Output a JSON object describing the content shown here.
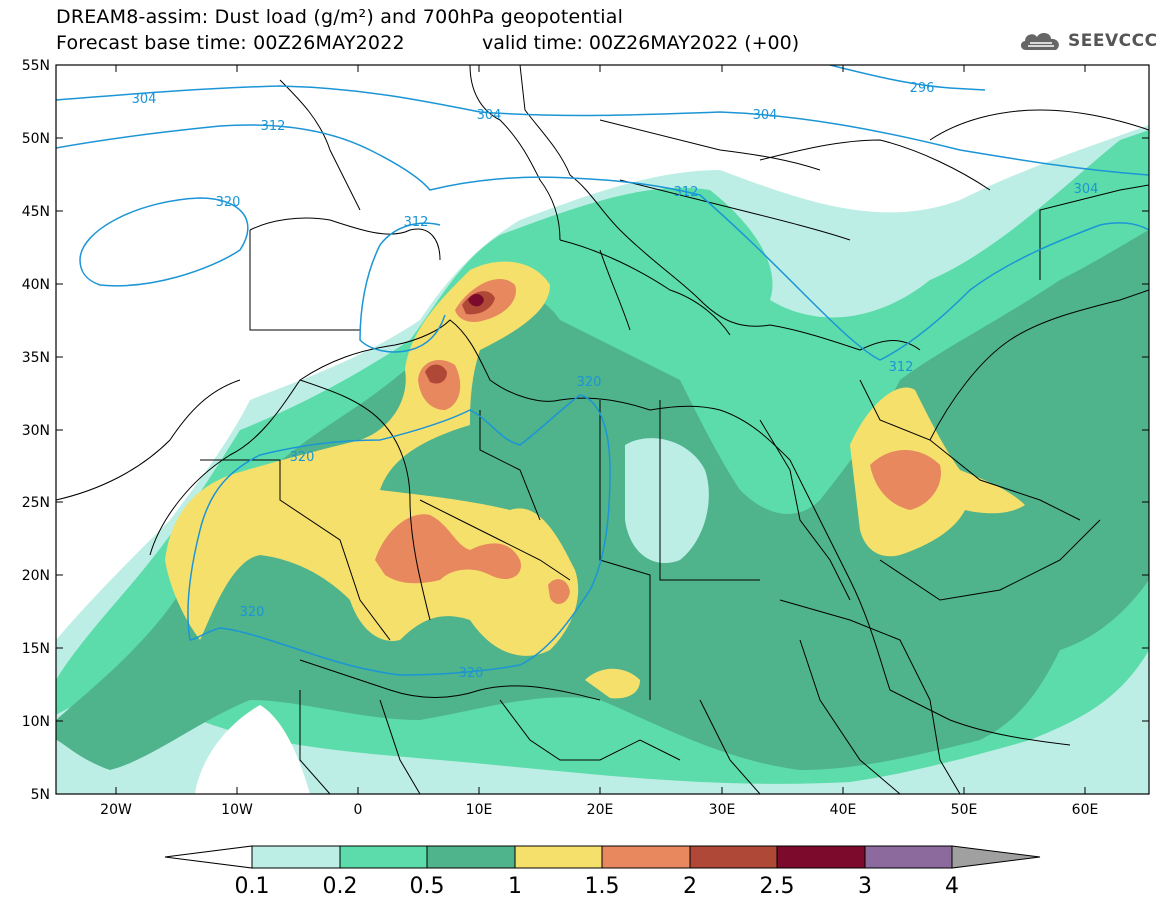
{
  "header": {
    "title_line1": "DREAM8-assim: Dust load (g/m²) and 700hPa geopotential",
    "title_line2": "Forecast base time: 00Z26MAY2022",
    "valid": "valid time: 00Z26MAY2022 (+00)"
  },
  "logo": {
    "text": "SEEVCCC",
    "icon": "cloud-icon"
  },
  "map": {
    "lat_labels": [
      "55N",
      "50N",
      "45N",
      "40N",
      "35N",
      "30N",
      "25N",
      "20N",
      "15N",
      "10N",
      "5N"
    ],
    "lon_labels": [
      "20W",
      "10W",
      "0",
      "10E",
      "20E",
      "30E",
      "40E",
      "50E",
      "60E"
    ],
    "contour_labels": [
      "304",
      "304",
      "304",
      "296",
      "312",
      "312",
      "312",
      "312",
      "320",
      "320",
      "320",
      "320",
      "320",
      "304"
    ]
  },
  "colorbar": {
    "labels": [
      "0.1",
      "0.2",
      "0.5",
      "1",
      "1.5",
      "2",
      "2.5",
      "3",
      "4"
    ],
    "colors": [
      "#ffffff",
      "#bdeee6",
      "#5cdcaa",
      "#4fb38b",
      "#f6e06c",
      "#e8885f",
      "#b04838",
      "#7c0a2c",
      "#8c6a9d",
      "#a0a0a0"
    ]
  }
}
